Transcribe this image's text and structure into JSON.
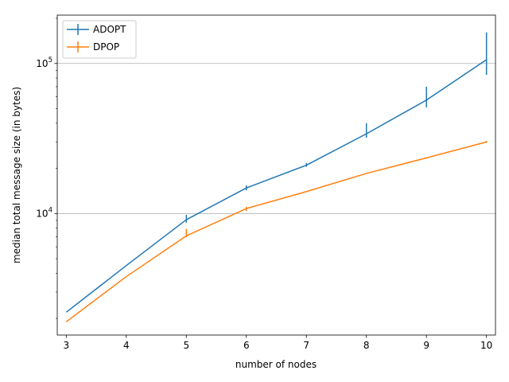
{
  "chart_data": {
    "type": "line",
    "title": "",
    "xlabel": "number of nodes",
    "ylabel": "median total message size (in bytes)",
    "x": [
      3,
      4,
      5,
      6,
      7,
      8,
      9,
      10
    ],
    "xticks": [
      "3",
      "4",
      "5",
      "6",
      "7",
      "8",
      "9",
      "10"
    ],
    "xlim": [
      2.85,
      10.15
    ],
    "ylim": [
      1550,
      210000
    ],
    "yscale": "log",
    "ymajor_ticks": [
      10000,
      100000
    ],
    "ymajor_tick_labels": [
      {
        "base": "10",
        "exp": "4"
      },
      {
        "base": "10",
        "exp": "5"
      }
    ],
    "grid": "y-major",
    "legend_position": "top-left",
    "series": [
      {
        "name": "ADOPT",
        "color": "#1f77b4",
        "values": [
          2200,
          4500,
          9100,
          14800,
          21000,
          34000,
          57000,
          106000
        ],
        "err_low": [
          2200,
          4500,
          8700,
          14300,
          20500,
          32000,
          51000,
          84000
        ],
        "err_high": [
          2200,
          4500,
          9800,
          15400,
          21700,
          40000,
          70000,
          161000
        ]
      },
      {
        "name": "DPOP",
        "color": "#ff7f0e",
        "values": [
          1900,
          3800,
          7100,
          10800,
          14000,
          18500,
          23500,
          30000
        ],
        "err_low": [
          1900,
          3800,
          6950,
          10400,
          14000,
          18500,
          23500,
          29600
        ],
        "err_high": [
          1900,
          3800,
          7900,
          11100,
          14000,
          18500,
          23500,
          30500
        ]
      }
    ]
  }
}
